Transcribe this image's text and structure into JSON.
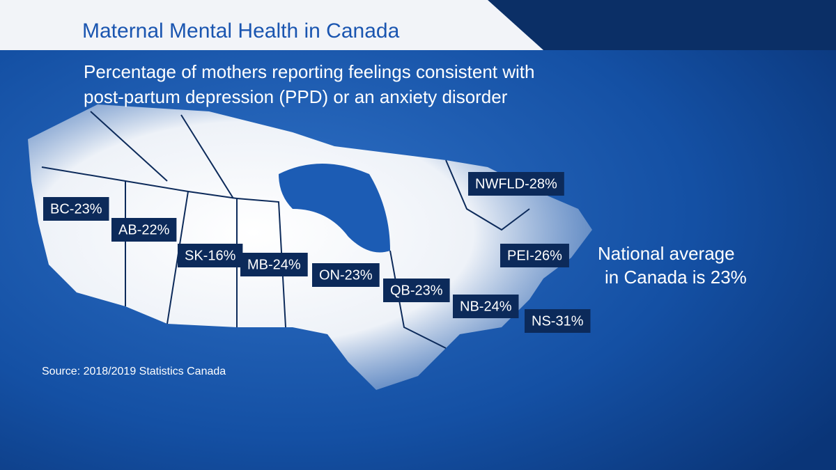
{
  "header": {
    "title": "Maternal Mental Health in Canada",
    "subtitle": [
      "Percentage of mothers reporting feelings consistent with",
      "post-partum depression (PPD) or an anxiety disorder"
    ]
  },
  "map": {
    "labels": [
      "BC-23%",
      "AB-22%",
      "SK-16%",
      "MB-24%",
      "ON-23%",
      "QB-23%",
      "NWFLD-28%",
      "PEI-26%",
      "NB-24%",
      "NS-31%"
    ]
  },
  "note": [
    "National average",
    "in Canada is 23%"
  ],
  "source": "Source: 2018/2019 Statistics Canada"
}
